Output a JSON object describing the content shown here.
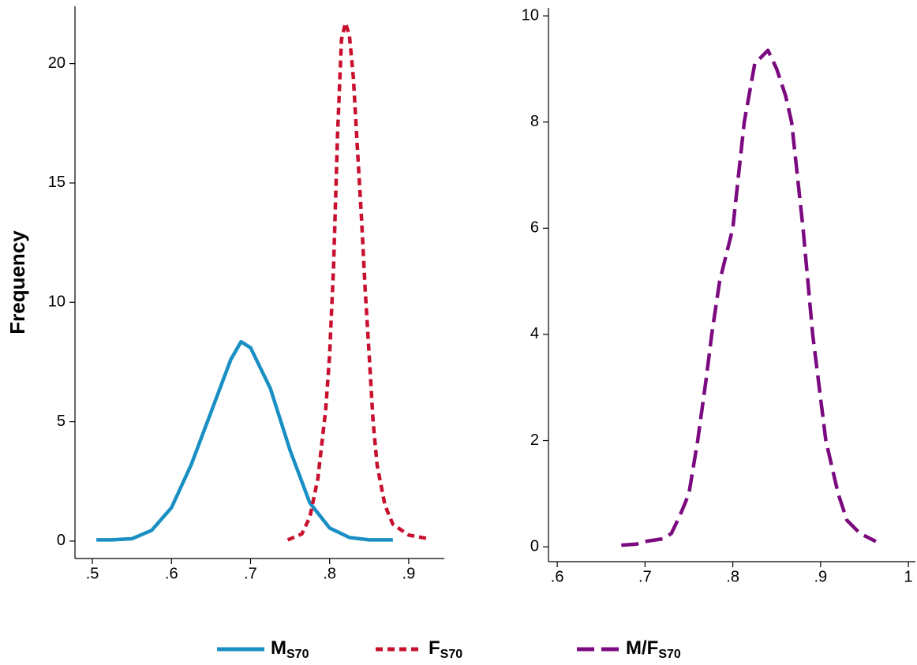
{
  "chart_data": [
    {
      "type": "line",
      "ylabel": "Frequency",
      "xlim": [
        0.478,
        0.945
      ],
      "ylim": [
        -0.73,
        22.4
      ],
      "xticks": [
        {
          "value": 0.5,
          "label": ".5"
        },
        {
          "value": 0.6,
          "label": ".6"
        },
        {
          "value": 0.7,
          "label": ".7"
        },
        {
          "value": 0.8,
          "label": ".8"
        },
        {
          "value": 0.9,
          "label": ".9"
        }
      ],
      "yticks": [
        0,
        5,
        10,
        15,
        20
      ],
      "series": [
        {
          "name": "M",
          "subscript": "S70",
          "color": "#1a8fc4",
          "line_style": "solid",
          "x": [
            0.505,
            0.525,
            0.55,
            0.575,
            0.6,
            0.625,
            0.65,
            0.675,
            0.688,
            0.7,
            0.725,
            0.75,
            0.775,
            0.8,
            0.825,
            0.85,
            0.88
          ],
          "values": [
            0.05,
            0.05,
            0.1,
            0.45,
            1.4,
            3.2,
            5.4,
            7.6,
            8.35,
            8.1,
            6.4,
            3.8,
            1.6,
            0.55,
            0.15,
            0.05,
            0.05
          ]
        },
        {
          "name": "F",
          "subscript": "S70",
          "color": "#c8102e",
          "line_style": "dash",
          "x": [
            0.747,
            0.765,
            0.775,
            0.785,
            0.795,
            0.8,
            0.805,
            0.81,
            0.815,
            0.82,
            0.825,
            0.83,
            0.835,
            0.84,
            0.845,
            0.85,
            0.855,
            0.86,
            0.87,
            0.88,
            0.9,
            0.925
          ],
          "values": [
            0.05,
            0.3,
            1.0,
            2.6,
            5.5,
            7.8,
            11.5,
            17.0,
            21.0,
            21.7,
            21.2,
            19.4,
            16.5,
            13.7,
            10.5,
            7.8,
            5.0,
            3.2,
            1.5,
            0.7,
            0.25,
            0.1
          ]
        }
      ]
    },
    {
      "type": "line",
      "xlim": [
        0.59,
        1.008
      ],
      "ylim": [
        -0.28,
        10.15
      ],
      "xticks": [
        {
          "value": 0.6,
          "label": ".6"
        },
        {
          "value": 0.7,
          "label": ".7"
        },
        {
          "value": 0.8,
          "label": ".8"
        },
        {
          "value": 0.9,
          "label": ".9"
        },
        1
      ],
      "yticks": [
        0,
        2,
        4,
        6,
        8,
        10
      ],
      "series": [
        {
          "name": "M/F",
          "subscript": "S70",
          "color": "#7b0a80",
          "line_style": "longdash",
          "x": [
            0.673,
            0.69,
            0.7,
            0.72,
            0.73,
            0.74,
            0.75,
            0.76,
            0.77,
            0.776,
            0.785,
            0.8,
            0.813,
            0.825,
            0.84,
            0.85,
            0.86,
            0.867,
            0.88,
            0.891,
            0.906,
            0.92,
            0.93,
            0.945,
            0.963
          ],
          "values": [
            0.03,
            0.05,
            0.1,
            0.15,
            0.25,
            0.6,
            1.0,
            2.0,
            3.2,
            4.0,
            5.0,
            6.0,
            8.0,
            9.1,
            9.35,
            9.0,
            8.5,
            8.0,
            6.0,
            4.0,
            2.0,
            1.0,
            0.5,
            0.25,
            0.1
          ]
        }
      ]
    }
  ]
}
